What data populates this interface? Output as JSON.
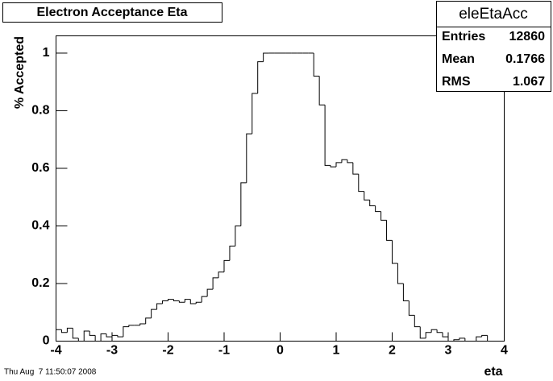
{
  "chart_data": {
    "type": "histogram",
    "title": "Electron Acceptance Eta",
    "xlabel": "eta",
    "ylabel": "% Accepted",
    "bins": [
      -4,
      -3.9,
      -3.8,
      -3.7,
      -3.6,
      -3.5,
      -3.4,
      -3.3,
      -3.2,
      -3.1,
      -3,
      -2.9,
      -2.8,
      -2.7,
      -2.6,
      -2.5,
      -2.4,
      -2.3,
      -2.2,
      -2.1,
      -2,
      -1.9,
      -1.8,
      -1.7,
      -1.6,
      -1.5,
      -1.4,
      -1.3,
      -1.2,
      -1.1,
      -1,
      -0.9,
      -0.8,
      -0.7,
      -0.6,
      -0.5,
      -0.4,
      -0.3,
      -0.2,
      -0.1,
      0,
      0.1,
      0.2,
      0.3,
      0.4,
      0.5,
      0.6,
      0.7,
      0.8,
      0.9,
      1,
      1.1,
      1.2,
      1.3,
      1.4,
      1.5,
      1.6,
      1.7,
      1.8,
      1.9,
      2,
      2.1,
      2.2,
      2.3,
      2.4,
      2.5,
      2.6,
      2.7,
      2.8,
      2.9,
      3,
      3.1,
      3.2,
      3.3,
      3.4,
      3.5,
      3.6,
      3.7,
      3.8,
      3.9,
      4
    ],
    "values": [
      0.04,
      0.03,
      0.045,
      0.01,
      0,
      0.035,
      0.02,
      0,
      0.025,
      0.015,
      0.02,
      0.015,
      0.05,
      0.055,
      0.055,
      0.06,
      0.08,
      0.11,
      0.13,
      0.14,
      0.145,
      0.14,
      0.135,
      0.145,
      0.13,
      0.135,
      0.155,
      0.18,
      0.22,
      0.24,
      0.28,
      0.33,
      0.4,
      0.55,
      0.72,
      0.86,
      0.97,
      1,
      1,
      1,
      1,
      1,
      1,
      1,
      1,
      1,
      0.92,
      0.82,
      0.61,
      0.605,
      0.62,
      0.63,
      0.62,
      0.58,
      0.52,
      0.49,
      0.47,
      0.45,
      0.42,
      0.35,
      0.27,
      0.2,
      0.14,
      0.09,
      0.05,
      0.01,
      0.03,
      0.04,
      0.03,
      0.015,
      0,
      0.005,
      0.01,
      0,
      0,
      0.015,
      0.02,
      0,
      0,
      0
    ],
    "color": "#000000",
    "xlim": [
      -4,
      4
    ],
    "ylim": [
      0,
      1.06
    ],
    "xticks": [
      -4,
      -3,
      -2,
      -1,
      0,
      1,
      2,
      3,
      4
    ],
    "yticks": [
      0,
      0.2,
      0.4,
      0.6,
      0.8,
      1
    ],
    "stats": {
      "title": "eleEtaAcc",
      "rows": [
        {
          "label": "Entries",
          "value": 12860
        },
        {
          "label": "Mean",
          "value": 0.1766
        },
        {
          "label": "RMS",
          "value": 1.067
        }
      ]
    },
    "timestamp": "Thu Aug  7 11:50:07 2008"
  }
}
